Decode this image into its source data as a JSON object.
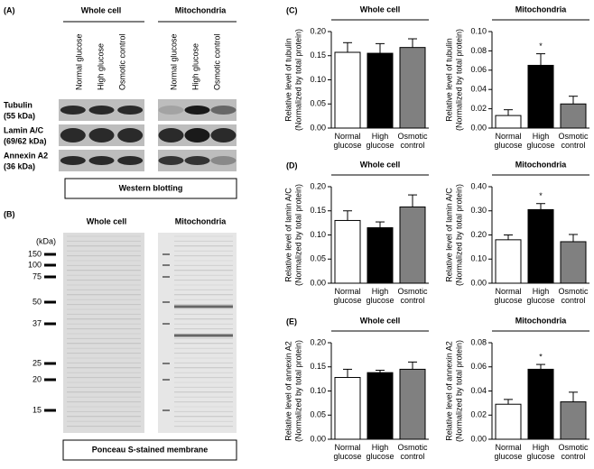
{
  "blot": {
    "label": "(A)",
    "headers": [
      "Whole cell",
      "Mitochondria"
    ],
    "lanes": [
      "Normal glucose",
      "High glucose",
      "Osmotic control"
    ],
    "proteins": [
      {
        "name": "Tubulin",
        "size": "(55 kDa)"
      },
      {
        "name": "Lamin A/C",
        "size": "(69/62 kDa)"
      },
      {
        "name": "Annexin A2",
        "size": "(36 kDa)"
      }
    ],
    "caption": "Western blotting"
  },
  "ponceau": {
    "label": "(B)",
    "headers": [
      "Whole cell",
      "Mitochondria"
    ],
    "unit": "(kDa)",
    "markers": [
      "150",
      "100",
      "75",
      "50",
      "37",
      "25",
      "20",
      "15"
    ],
    "caption": "Ponceau S-stained membrane"
  },
  "chart_data": [
    {
      "type": "bar",
      "panel": "(C)",
      "title": "Whole cell",
      "y_label": "Relative level of tubulin",
      "y_note": "(Normalized by total protein)",
      "categories": [
        "Normal glucose",
        "High glucose",
        "Osmotic control"
      ],
      "values": [
        0.157,
        0.155,
        0.167
      ],
      "errors": [
        0.02,
        0.02,
        0.018
      ],
      "colors": [
        "#ffffff",
        "#000000",
        "#808080"
      ],
      "ylim": [
        0,
        0.2
      ],
      "yticks": [
        {
          "value": 0,
          "label": "0.00"
        },
        {
          "value": 0.05,
          "label": "0.05"
        },
        {
          "value": 0.1,
          "label": "0.10"
        },
        {
          "value": 0.15,
          "label": "0.15"
        },
        {
          "value": 0.2,
          "label": "0.20"
        }
      ]
    },
    {
      "type": "bar",
      "title": "Mitochondria",
      "y_label": "Relative level of tubulin",
      "y_note": "(Normalized by total protein)",
      "categories": [
        "Normal glucose",
        "High glucose",
        "Osmotic control"
      ],
      "values": [
        0.013,
        0.065,
        0.025
      ],
      "errors": [
        0.006,
        0.012,
        0.008
      ],
      "significance": [
        null,
        "*",
        null
      ],
      "colors": [
        "#ffffff",
        "#000000",
        "#808080"
      ],
      "ylim": [
        0,
        0.1
      ],
      "yticks": [
        {
          "value": 0,
          "label": "0.00"
        },
        {
          "value": 0.02,
          "label": "0.02"
        },
        {
          "value": 0.04,
          "label": "0.04"
        },
        {
          "value": 0.06,
          "label": "0.06"
        },
        {
          "value": 0.08,
          "label": "0.08"
        },
        {
          "value": 0.1,
          "label": "0.10"
        }
      ]
    },
    {
      "type": "bar",
      "panel": "(D)",
      "title": "Whole cell",
      "y_label": "Relative level of lamin A/C",
      "y_note": "(Normalized by total protein)",
      "categories": [
        "Normal glucose",
        "High glucose",
        "Osmotic control"
      ],
      "values": [
        0.13,
        0.115,
        0.158
      ],
      "errors": [
        0.02,
        0.012,
        0.025
      ],
      "colors": [
        "#ffffff",
        "#000000",
        "#808080"
      ],
      "ylim": [
        0,
        0.2
      ],
      "yticks": [
        {
          "value": 0,
          "label": "0.00"
        },
        {
          "value": 0.05,
          "label": "0.05"
        },
        {
          "value": 0.1,
          "label": "0.10"
        },
        {
          "value": 0.15,
          "label": "0.15"
        },
        {
          "value": 0.2,
          "label": "0.20"
        }
      ]
    },
    {
      "type": "bar",
      "title": "Mitochondria",
      "y_label": "Relative level of lamin A/C",
      "y_note": "(Normalized by total protein)",
      "categories": [
        "Normal glucose",
        "High glucose",
        "Osmotic control"
      ],
      "values": [
        0.18,
        0.305,
        0.172
      ],
      "errors": [
        0.02,
        0.025,
        0.03
      ],
      "significance": [
        null,
        "*",
        null
      ],
      "colors": [
        "#ffffff",
        "#000000",
        "#808080"
      ],
      "ylim": [
        0,
        0.4
      ],
      "yticks": [
        {
          "value": 0,
          "label": "0.00"
        },
        {
          "value": 0.1,
          "label": "0.10"
        },
        {
          "value": 0.2,
          "label": "0.20"
        },
        {
          "value": 0.3,
          "label": "0.30"
        },
        {
          "value": 0.4,
          "label": "0.40"
        }
      ]
    },
    {
      "type": "bar",
      "panel": "(E)",
      "title": "Whole cell",
      "y_label": "Relative level of annexin A2",
      "y_note": "(Normalized by total protein)",
      "categories": [
        "Normal glucose",
        "High glucose",
        "Osmotic control"
      ],
      "values": [
        0.128,
        0.138,
        0.145
      ],
      "errors": [
        0.017,
        0.005,
        0.015
      ],
      "colors": [
        "#ffffff",
        "#000000",
        "#808080"
      ],
      "ylim": [
        0,
        0.2
      ],
      "yticks": [
        {
          "value": 0,
          "label": "0.00"
        },
        {
          "value": 0.05,
          "label": "0.05"
        },
        {
          "value": 0.1,
          "label": "0.10"
        },
        {
          "value": 0.15,
          "label": "0.15"
        },
        {
          "value": 0.2,
          "label": "0.20"
        }
      ]
    },
    {
      "type": "bar",
      "title": "Mitochondria",
      "y_label": "Relative level of annexin A2",
      "y_note": "(Normalized by total protein)",
      "categories": [
        "Normal glucose",
        "High glucose",
        "Osmotic control"
      ],
      "values": [
        0.029,
        0.058,
        0.031
      ],
      "errors": [
        0.004,
        0.004,
        0.008
      ],
      "significance": [
        null,
        "*",
        null
      ],
      "colors": [
        "#ffffff",
        "#000000",
        "#808080"
      ],
      "ylim": [
        0,
        0.08
      ],
      "yticks": [
        {
          "value": 0,
          "label": "0.00"
        },
        {
          "value": 0.02,
          "label": "0.02"
        },
        {
          "value": 0.04,
          "label": "0.04"
        },
        {
          "value": 0.06,
          "label": "0.06"
        },
        {
          "value": 0.08,
          "label": "0.08"
        }
      ]
    }
  ]
}
